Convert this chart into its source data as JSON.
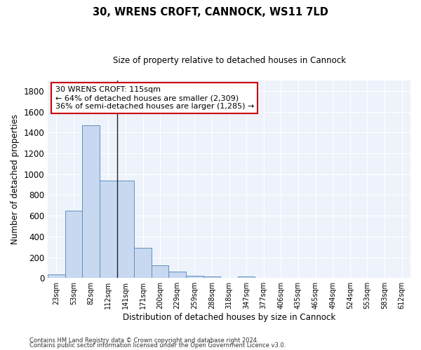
{
  "title1": "30, WRENS CROFT, CANNOCK, WS11 7LD",
  "title2": "Size of property relative to detached houses in Cannock",
  "xlabel": "Distribution of detached houses by size in Cannock",
  "ylabel": "Number of detached properties",
  "bin_labels": [
    "23sqm",
    "53sqm",
    "82sqm",
    "112sqm",
    "141sqm",
    "171sqm",
    "200sqm",
    "229sqm",
    "259sqm",
    "288sqm",
    "318sqm",
    "347sqm",
    "377sqm",
    "406sqm",
    "435sqm",
    "465sqm",
    "494sqm",
    "524sqm",
    "553sqm",
    "583sqm",
    "612sqm"
  ],
  "bar_values": [
    35,
    650,
    1470,
    935,
    935,
    290,
    125,
    60,
    22,
    15,
    0,
    15,
    0,
    0,
    0,
    0,
    0,
    0,
    0,
    0,
    0
  ],
  "bar_color": "#c8d8f0",
  "bar_edge_color": "#6090c0",
  "property_line_x": 3.5,
  "annotation_line1": "30 WRENS CROFT: 115sqm",
  "annotation_line2": "← 64% of detached houses are smaller (2,309)",
  "annotation_line3": "36% of semi-detached houses are larger (1,285) →",
  "annotation_box_color": "#ffffff",
  "annotation_box_edge": "#cc0000",
  "ylim": [
    0,
    1900
  ],
  "yticks": [
    0,
    200,
    400,
    600,
    800,
    1000,
    1200,
    1400,
    1600,
    1800
  ],
  "background_color": "#eef2fb",
  "grid_color": "#ffffff",
  "footer1": "Contains HM Land Registry data © Crown copyright and database right 2024.",
  "footer2": "Contains public sector information licensed under the Open Government Licence v3.0."
}
